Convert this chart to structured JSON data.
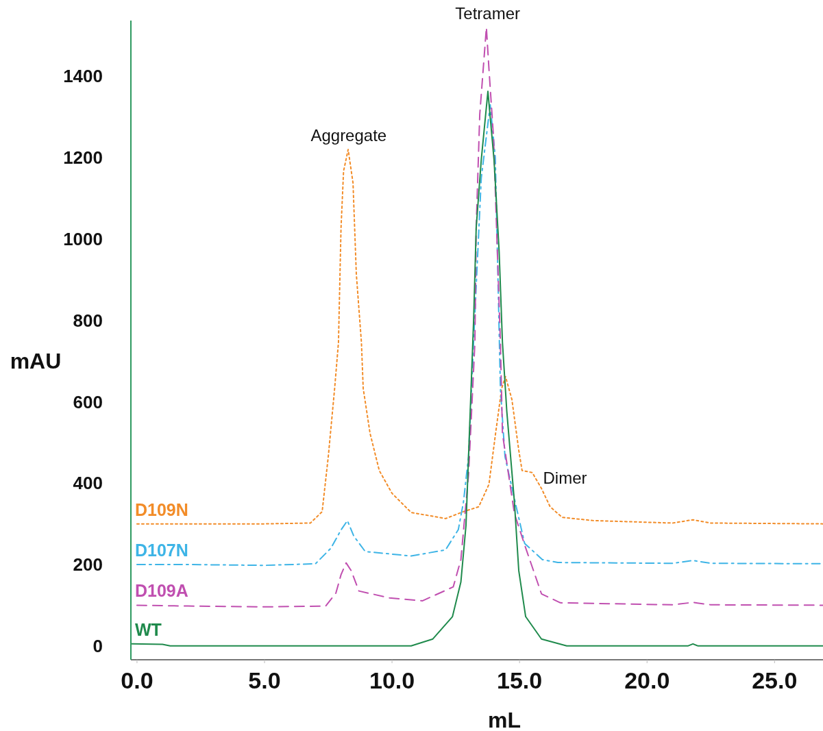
{
  "chart_data": {
    "type": "line",
    "xlabel": "mL",
    "ylabel": "mAU",
    "xlim": [
      -0.24,
      26.9
    ],
    "ylim": [
      -34,
      1537
    ],
    "xticks": [
      {
        "value": 0,
        "label": "0.0"
      },
      {
        "value": 5,
        "label": "5.0"
      },
      {
        "value": 10,
        "label": "10.0"
      },
      {
        "value": 15,
        "label": "15.0"
      },
      {
        "value": 20,
        "label": "20.0"
      },
      {
        "value": 25,
        "label": "25.0"
      }
    ],
    "yticks": [
      0,
      200,
      400,
      600,
      800,
      1000,
      1200,
      1400
    ],
    "grid": false,
    "marker": "none",
    "annotations": [
      {
        "text": "Aggregate",
        "x": 8.3,
        "y": 1220
      },
      {
        "text": "Tetramer",
        "x": 13.75,
        "y": 1520
      },
      {
        "text": "Dimer",
        "x": 15.6,
        "y": 426
      }
    ],
    "series": [
      {
        "name": "D109N",
        "color": "#f28c28",
        "line_style": "dotted",
        "x": [
          0,
          2,
          5,
          6.8,
          7.26,
          7.5,
          7.75,
          7.9,
          8.0,
          8.1,
          8.28,
          8.47,
          8.6,
          8.8,
          8.87,
          9.14,
          9.5,
          10.0,
          10.75,
          12.1,
          12.8,
          13.4,
          13.8,
          14.06,
          14.3,
          14.45,
          14.7,
          14.97,
          15.1,
          15.5,
          15.86,
          16.2,
          16.67,
          17.9,
          21.0,
          21.8,
          22.5,
          26.9
        ],
        "values": [
          300,
          300,
          300,
          302,
          330,
          465,
          633,
          746,
          1027,
          1167,
          1220,
          1138,
          914,
          746,
          633,
          522,
          431,
          375,
          328,
          313,
          330,
          342,
          397,
          522,
          633,
          662,
          606,
          481,
          431,
          426,
          387,
          342,
          316,
          308,
          302,
          310,
          302,
          300
        ]
      },
      {
        "name": "D107N",
        "color": "#3db4e6",
        "line_style": "dashdot",
        "x": [
          0,
          2,
          5,
          7.0,
          7.6,
          8.0,
          8.25,
          8.5,
          8.95,
          10.75,
          12.1,
          12.6,
          12.8,
          13.0,
          13.2,
          13.5,
          13.85,
          14.05,
          14.25,
          14.43,
          14.87,
          15.2,
          15.9,
          16.5,
          21.0,
          21.8,
          22.5,
          26.9
        ],
        "values": [
          200,
          200,
          198,
          202,
          240,
          285,
          308,
          270,
          232,
          221,
          236,
          286,
          353,
          465,
          750,
          1150,
          1330,
          1200,
          633,
          465,
          342,
          252,
          212,
          205,
          203,
          210,
          203,
          202
        ]
      },
      {
        "name": "D109A",
        "color": "#c04fb0",
        "line_style": "dashed",
        "x": [
          0,
          2,
          5,
          7.4,
          7.8,
          8.0,
          8.2,
          8.4,
          8.7,
          9.9,
          11.2,
          12.4,
          12.7,
          13.0,
          13.25,
          13.3,
          13.44,
          13.7,
          13.8,
          13.98,
          14.1,
          14.25,
          14.33,
          14.8,
          15.24,
          15.86,
          16.6,
          21.0,
          21.8,
          22.5,
          26.9
        ],
        "values": [
          100,
          98,
          96,
          98,
          130,
          175,
          204,
          185,
          135,
          118,
          111,
          145,
          212,
          420,
          746,
          1027,
          1306,
          1520,
          1419,
          1250,
          1027,
          746,
          522,
          325,
          241,
          128,
          106,
          101,
          107,
          101,
          100
        ]
      },
      {
        "name": "WT",
        "color": "#1f8a4c",
        "line_style": "solid",
        "x": [
          -0.2,
          1.0,
          1.3,
          10.75,
          11.6,
          12.37,
          12.7,
          12.9,
          13.0,
          13.1,
          13.2,
          13.3,
          13.5,
          13.76,
          14.0,
          14.2,
          14.33,
          14.5,
          14.8,
          14.97,
          15.24,
          15.86,
          16.85,
          21.6,
          21.8,
          22.0,
          26.9
        ],
        "values": [
          5,
          4,
          0,
          0,
          17,
          72,
          157,
          296,
          465,
          633,
          801,
          1027,
          1195,
          1363,
          1195,
          970,
          746,
          577,
          353,
          185,
          72,
          17,
          0,
          0,
          5,
          0,
          0
        ]
      }
    ]
  }
}
